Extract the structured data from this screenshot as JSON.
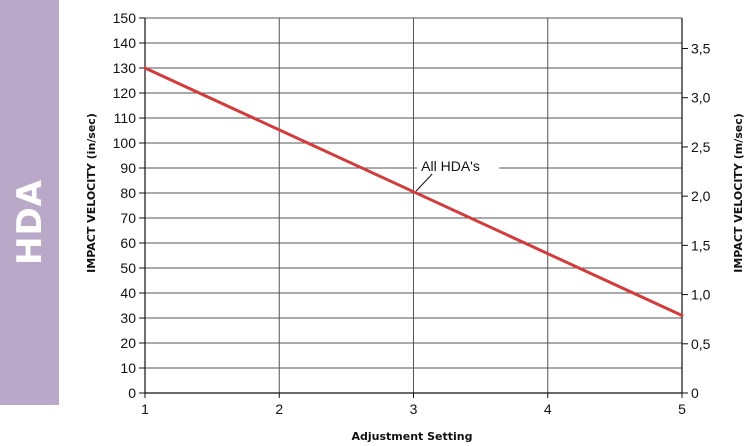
{
  "side_tab": {
    "label": "HDA"
  },
  "chart_data": {
    "type": "line",
    "title": "",
    "xlabel": "Adjustment Setting",
    "ylabel": "IMPACT VELOCITY (in/sec)",
    "y2label": "IMPACT VELOCITY (m/sec)",
    "xlim": [
      1,
      5
    ],
    "ylim": [
      0,
      150
    ],
    "y2lim": [
      0,
      3.81
    ],
    "grid": true,
    "x_ticks": [
      1,
      2,
      3,
      4,
      5
    ],
    "x_tick_labels": [
      "1",
      "2",
      "3",
      "4",
      "5"
    ],
    "y_ticks": [
      0,
      10,
      20,
      30,
      40,
      50,
      60,
      70,
      80,
      90,
      100,
      110,
      120,
      130,
      140,
      150
    ],
    "y_tick_labels": [
      "0",
      "10",
      "20",
      "30",
      "40",
      "50",
      "60",
      "70",
      "80",
      "90",
      "100",
      "110",
      "120",
      "130",
      "140",
      "150"
    ],
    "y2_ticks": [
      0,
      0.5,
      1.0,
      1.5,
      2.0,
      2.5,
      3.0,
      3.5
    ],
    "y2_tick_labels": [
      "0",
      "0,5",
      "1,0",
      "1,5",
      "2,0",
      "2,5",
      "3,0",
      "3,5"
    ],
    "series": [
      {
        "name": "All HDA's",
        "x": [
          1,
          5
        ],
        "y": [
          130,
          31
        ]
      }
    ],
    "annotations": [
      {
        "text": "All HDA's",
        "x": 3.02,
        "y": 80
      }
    ],
    "colors": {
      "line": "#d23c3c",
      "grid": "#555555",
      "axis": "#111111"
    }
  }
}
